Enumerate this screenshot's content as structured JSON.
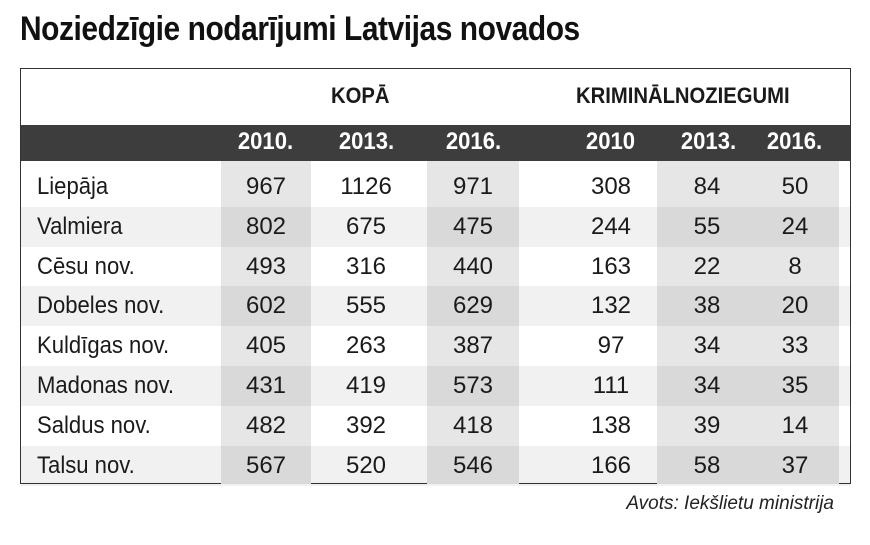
{
  "title": "Noziedzīgie nodarījumi Latvijas novados",
  "groups": [
    "KOPĀ",
    "KRIMINĀLNOZIEGUMI"
  ],
  "years": [
    "2010.",
    "2013.",
    "2016.",
    "2010",
    "2013.",
    "2016."
  ],
  "source": "Avots: Iekšlietu ministrija",
  "chart_data": {
    "type": "table",
    "title": "Noziedzīgie nodarījumi Latvijas novados",
    "column_groups": [
      {
        "name": "KOPĀ",
        "columns": [
          "2010.",
          "2013.",
          "2016."
        ]
      },
      {
        "name": "KRIMINĀLNOZIEGUMI",
        "columns": [
          "2010",
          "2013.",
          "2016."
        ]
      }
    ],
    "rows": [
      {
        "region": "Liepāja",
        "values": [
          "967",
          "1126",
          "971",
          "308",
          "84",
          "50"
        ]
      },
      {
        "region": "Valmiera",
        "values": [
          "802",
          "675",
          "475",
          "244",
          "55",
          "24"
        ]
      },
      {
        "region": "Cēsu nov.",
        "values": [
          "493",
          "316",
          "440",
          "163",
          "22",
          "8"
        ]
      },
      {
        "region": "Dobeles nov.",
        "values": [
          "602",
          "555",
          "629",
          "132",
          "38",
          "20"
        ]
      },
      {
        "region": "Kuldīgas nov.",
        "values": [
          "405",
          "263",
          "387",
          "97",
          "34",
          "33"
        ]
      },
      {
        "region": "Madonas nov.",
        "values": [
          "431",
          "419",
          "573",
          "111",
          "34",
          "35"
        ]
      },
      {
        "region": "Saldus nov.",
        "values": [
          "482",
          "392",
          "418",
          "138",
          "39",
          "14"
        ]
      },
      {
        "region": "Talsu nov.",
        "values": [
          "567",
          "520",
          "546",
          "166",
          "58",
          "37"
        ]
      }
    ],
    "source": "Avots: Iekšlietu ministrija"
  }
}
